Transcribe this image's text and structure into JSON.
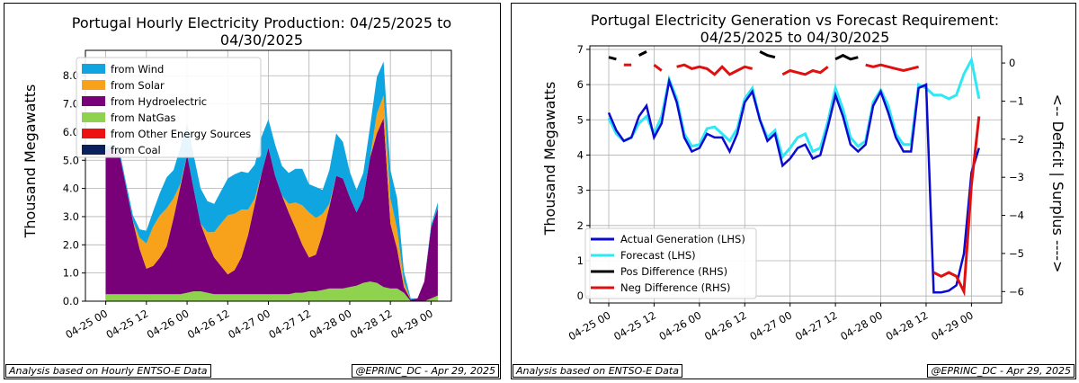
{
  "chart_data": [
    {
      "type": "area",
      "title": "Portugal Hourly Electricity Production: 04/25/2025 to 04/30/2025",
      "title_lines": [
        "Portugal Hourly Electricity Production: 04/25/2025 to",
        "04/30/2025"
      ],
      "xlabel": "",
      "ylabel": "Thousand Megawatts",
      "ylim": [
        0,
        8.9
      ],
      "yticks": [
        "0.0",
        "1.0",
        "2.0",
        "3.0",
        "4.0",
        "5.0",
        "6.0",
        "7.0",
        "8.0"
      ],
      "xtick_labels": [
        "04-25 00",
        "04-25 12",
        "04-26 00",
        "04-26 12",
        "04-27 00",
        "04-27 12",
        "04-28 00",
        "04-28 12",
        "04-29 00"
      ],
      "xlim_hours": [
        -6,
        102
      ],
      "grid": true,
      "legend_position": "upper-left",
      "x_hours": [
        0,
        2,
        4,
        6,
        8,
        10,
        12,
        14,
        16,
        18,
        20,
        22,
        24,
        26,
        28,
        30,
        32,
        34,
        36,
        38,
        40,
        42,
        44,
        46,
        48,
        50,
        52,
        54,
        56,
        58,
        60,
        62,
        64,
        66,
        68,
        70,
        72,
        74,
        76,
        78,
        80,
        82,
        84,
        86,
        88,
        90,
        92,
        94,
        96,
        98
      ],
      "series": [
        {
          "name": "from Wind",
          "color": "#0ea5e0",
          "values": [
            0.15,
            0.1,
            0.12,
            0.15,
            0.2,
            0.3,
            0.45,
            0.55,
            0.8,
            1.1,
            1.0,
            1.3,
            1.1,
            1.2,
            1.25,
            1.1,
            1.0,
            1.15,
            1.3,
            1.4,
            1.35,
            1.3,
            1.2,
            1.3,
            1.0,
            1.1,
            1.05,
            1.1,
            1.2,
            1.3,
            1.0,
            1.1,
            0.85,
            1.2,
            1.5,
            1.3,
            0.9,
            0.8,
            0.9,
            1.1,
            1.3,
            1.2,
            1.0,
            1.1,
            0.35,
            0.05,
            0,
            0,
            0.1,
            0.2
          ]
        },
        {
          "name": "from Solar",
          "color": "#f8a21b",
          "values": [
            0,
            0,
            0,
            0,
            0,
            0.4,
            0.9,
            1.4,
            1.5,
            1.35,
            0.7,
            0.1,
            0,
            0,
            0,
            0.35,
            0.9,
            1.5,
            2.1,
            2.0,
            1.7,
            0.9,
            0.2,
            0,
            0,
            0,
            0,
            0.3,
            0.9,
            1.4,
            1.6,
            1.3,
            0.7,
            0.1,
            0,
            0,
            0,
            0,
            0,
            0,
            0.7,
            0.8,
            0.9,
            0.7,
            0.2,
            0,
            0,
            0,
            0,
            0
          ]
        },
        {
          "name": "from Hydroelectric",
          "color": "#780079",
          "values": [
            5.1,
            5.2,
            5.0,
            3.8,
            2.6,
            1.6,
            0.9,
            1.0,
            1.3,
            1.7,
            2.7,
            3.8,
            4.9,
            3.6,
            2.4,
            1.8,
            1.3,
            1.0,
            0.7,
            0.85,
            1.3,
            2.1,
            3.2,
            4.3,
            5.2,
            4.2,
            3.5,
            2.9,
            2.3,
            1.7,
            1.2,
            1.3,
            2.0,
            2.9,
            4.0,
            3.9,
            3.2,
            2.6,
            3.0,
            4.4,
            5.3,
            6.0,
            2.3,
            1.4,
            0.2,
            0.05,
            0.1,
            0.7,
            2.5,
            3.1
          ]
        },
        {
          "name": "from NatGas",
          "color": "#8fd24e",
          "values": [
            0.25,
            0.25,
            0.25,
            0.25,
            0.25,
            0.25,
            0.25,
            0.25,
            0.25,
            0.25,
            0.25,
            0.25,
            0.3,
            0.35,
            0.35,
            0.3,
            0.25,
            0.25,
            0.25,
            0.25,
            0.25,
            0.25,
            0.25,
            0.25,
            0.25,
            0.25,
            0.25,
            0.25,
            0.3,
            0.3,
            0.35,
            0.35,
            0.4,
            0.45,
            0.45,
            0.45,
            0.5,
            0.55,
            0.65,
            0.7,
            0.65,
            0.5,
            0.45,
            0.45,
            0.3,
            0,
            0,
            0,
            0.1,
            0.2
          ]
        },
        {
          "name": "from Other Energy Sources",
          "color": "#ee1111",
          "values": []
        },
        {
          "name": "from Coal",
          "color": "#0b1f5c",
          "values": []
        }
      ],
      "footer_left": "Analysis based on Hourly ENTSO-E Data",
      "footer_right": "@EPRINC_DC - Apr 29, 2025"
    },
    {
      "type": "line",
      "title": "Portugal Electricity Generation vs Forecast Requirement: 04/25/2025 to 04/30/2025",
      "title_lines": [
        "Portugal Electricity Generation vs Forecast Requirement:",
        "04/25/2025 to 04/30/2025"
      ],
      "ylabel": "Thousand Megawatts",
      "ylabel_right": "<-- Deficit | Surplus ---->",
      "ylim": [
        -0.2,
        7.1
      ],
      "ylim_right": [
        -6.3,
        0.45
      ],
      "yticks": [
        "0",
        "1",
        "2",
        "3",
        "4",
        "5",
        "6",
        "7"
      ],
      "yticks_right": [
        "0",
        "−1",
        "−2",
        "−3",
        "−4",
        "−5",
        "−6"
      ],
      "xtick_labels": [
        "04-25 00",
        "04-25 12",
        "04-26 00",
        "04-26 12",
        "04-27 00",
        "04-27 12",
        "04-28 00",
        "04-28 12",
        "04-29 00"
      ],
      "xlim_hours": [
        -5,
        104
      ],
      "grid": true,
      "legend_position": "lower-left",
      "x_hours": [
        0,
        2,
        4,
        6,
        8,
        10,
        12,
        14,
        16,
        18,
        20,
        22,
        24,
        26,
        28,
        30,
        32,
        34,
        36,
        38,
        40,
        42,
        44,
        46,
        48,
        50,
        52,
        54,
        56,
        58,
        60,
        62,
        64,
        66,
        68,
        70,
        72,
        74,
        76,
        78,
        80,
        82,
        84,
        86,
        88,
        90,
        92,
        94,
        96,
        98
      ],
      "series": [
        {
          "name": "Actual Generation (LHS)",
          "color": "#0b0bcf",
          "values": [
            5.2,
            4.7,
            4.4,
            4.5,
            5.1,
            5.4,
            4.5,
            4.9,
            6.1,
            5.5,
            4.5,
            4.1,
            4.2,
            4.6,
            4.5,
            4.5,
            4.1,
            4.6,
            5.5,
            5.8,
            5.0,
            4.4,
            4.6,
            3.7,
            3.9,
            4.2,
            4.3,
            3.9,
            4.0,
            4.8,
            5.7,
            5.1,
            4.3,
            4.1,
            4.3,
            5.4,
            5.8,
            5.2,
            4.5,
            4.1,
            4.1,
            5.9,
            6.0,
            0.1,
            0.1,
            0.15,
            0.3,
            1.2,
            3.5,
            4.2
          ]
        },
        {
          "name": "Forecast (LHS)",
          "color": "#2ee8f5",
          "values": [
            5.05,
            4.6,
            4.4,
            4.5,
            4.9,
            5.1,
            4.6,
            5.1,
            6.15,
            5.6,
            4.6,
            4.25,
            4.3,
            4.75,
            4.8,
            4.6,
            4.4,
            4.75,
            5.6,
            5.9,
            5.0,
            4.5,
            4.7,
            3.95,
            4.2,
            4.5,
            4.6,
            4.1,
            4.2,
            4.95,
            5.9,
            5.3,
            4.5,
            4.25,
            4.4,
            5.5,
            5.85,
            5.4,
            4.6,
            4.3,
            4.3,
            6.0,
            5.9,
            5.7,
            5.7,
            5.6,
            5.7,
            6.3,
            6.7,
            5.6
          ]
        },
        {
          "name": "Pos Difference (RHS)",
          "color": "#000000",
          "values": [
            0.15,
            0.1,
            0,
            0,
            0.2,
            0.3,
            0,
            0,
            0.15,
            0,
            0,
            0,
            0,
            0,
            0,
            0,
            0,
            0,
            0,
            0,
            0.3,
            0.2,
            0.15,
            0,
            0,
            0,
            0,
            0,
            0,
            0,
            0.1,
            0.2,
            0.1,
            0.15,
            0,
            0,
            0,
            0,
            0,
            0,
            0,
            0,
            0,
            0,
            0,
            0,
            0,
            0,
            0,
            0
          ]
        },
        {
          "name": "Neg Difference (RHS)",
          "color": "#e01010",
          "values": [
            0,
            0,
            -0.05,
            -0.05,
            0,
            0,
            -0.05,
            -0.2,
            0,
            -0.1,
            -0.05,
            -0.15,
            -0.1,
            -0.15,
            -0.3,
            -0.1,
            -0.3,
            -0.2,
            -0.1,
            -0.15,
            0,
            0,
            0,
            -0.3,
            -0.2,
            -0.25,
            -0.3,
            -0.2,
            -0.25,
            -0.1,
            0,
            0,
            0,
            0,
            -0.05,
            -0.1,
            -0.05,
            -0.1,
            -0.15,
            -0.2,
            -0.15,
            -0.1,
            0,
            -5.5,
            -5.6,
            -5.5,
            -5.6,
            -6.0,
            -3.2,
            -1.4
          ]
        }
      ],
      "footer_left": "Analysis based on ENTSO-E Data",
      "footer_right": "@EPRINC_DC - Apr 29, 2025"
    }
  ]
}
